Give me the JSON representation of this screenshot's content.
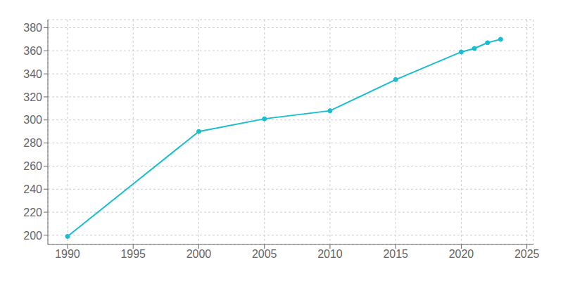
{
  "chart_data": {
    "type": "line",
    "x": [
      1990,
      2000,
      2005,
      2010,
      2015,
      2020,
      2021,
      2022,
      2023
    ],
    "values": [
      199,
      290,
      301,
      308,
      335,
      359,
      362,
      367,
      370
    ],
    "color": "#17becf",
    "marker": "circle",
    "xlim": [
      1988.5,
      2025.5
    ],
    "ylim": [
      192,
      387
    ],
    "xticks": [
      1990,
      1995,
      2000,
      2005,
      2010,
      2015,
      2020,
      2025
    ],
    "yticks": [
      200,
      220,
      240,
      260,
      280,
      300,
      320,
      340,
      360,
      380
    ],
    "grid": true
  }
}
